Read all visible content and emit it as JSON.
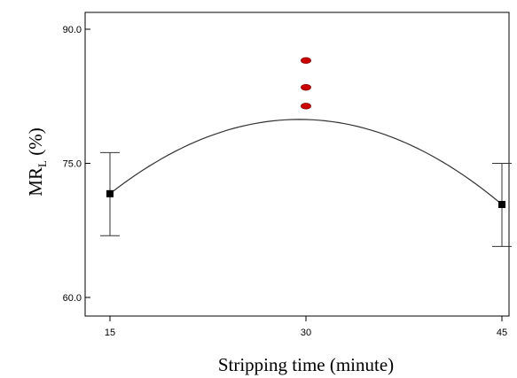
{
  "chart_data": {
    "type": "line",
    "xlabel": "Stripping time (minute)",
    "ylabel": {
      "main": "MR",
      "subscript": "L",
      "suffix": " (%)"
    },
    "xlim": [
      15,
      45
    ],
    "ylim": [
      60,
      90
    ],
    "x_ticks": [
      {
        "value": 15,
        "label": "15"
      },
      {
        "value": 30,
        "label": "30"
      },
      {
        "value": 45,
        "label": "45"
      }
    ],
    "y_ticks": [
      {
        "value": 60,
        "label": "60.0"
      },
      {
        "value": 75,
        "label": "75.0"
      },
      {
        "value": 90,
        "label": "90.0"
      }
    ],
    "fit_curve": {
      "points": [
        [
          15,
          71.6
        ],
        [
          30,
          79.9
        ],
        [
          45,
          70.4
        ]
      ]
    },
    "means_with_error_bars": [
      {
        "x": 15,
        "y": 71.6,
        "low": 66.9,
        "high": 76.2
      },
      {
        "x": 45,
        "y": 70.4,
        "low": 65.7,
        "high": 75.0
      }
    ],
    "observed_points": [
      {
        "x": 30,
        "y": 86.5
      },
      {
        "x": 30,
        "y": 83.5
      },
      {
        "x": 30,
        "y": 81.4
      }
    ],
    "colors": {
      "observed": "#cc0000",
      "curve": "#333333",
      "axis": "#000000",
      "means": "#000000"
    },
    "grid": false
  }
}
